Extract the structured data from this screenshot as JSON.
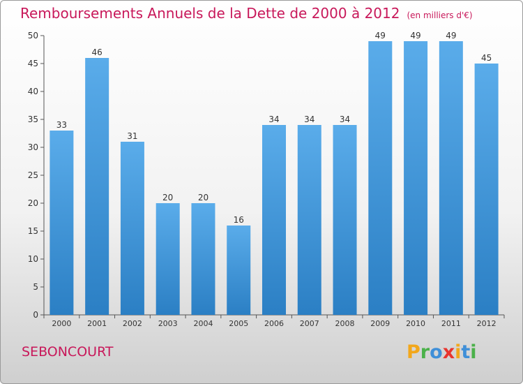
{
  "title": "Remboursements Annuels de la Dette de 2000 à 2012",
  "subtitle": "(en milliers d'€)",
  "city": "SEBONCOURT",
  "logo": {
    "letters": [
      "P",
      "r",
      "o",
      "x",
      "i",
      "t",
      "i"
    ],
    "colors": [
      "#f2a71b",
      "#4bb14a",
      "#3f8fd8",
      "#e8342e",
      "#f2a71b",
      "#3f8fd8",
      "#4bb14a"
    ]
  },
  "colors": {
    "title": "#c8185a",
    "bar_light": "#5aacea",
    "bar_dark": "#2b7fc4",
    "axis": "#555555"
  },
  "chart_data": {
    "type": "bar",
    "categories": [
      "2000",
      "2001",
      "2002",
      "2003",
      "2004",
      "2005",
      "2006",
      "2007",
      "2008",
      "2009",
      "2010",
      "2011",
      "2012"
    ],
    "values": [
      33,
      46,
      31,
      20,
      20,
      16,
      34,
      34,
      34,
      49,
      49,
      49,
      45
    ],
    "yticks": [
      0,
      5,
      10,
      15,
      20,
      25,
      30,
      35,
      40,
      45,
      50
    ],
    "ylim": [
      0,
      50
    ],
    "grid": false,
    "data_labels": true
  }
}
